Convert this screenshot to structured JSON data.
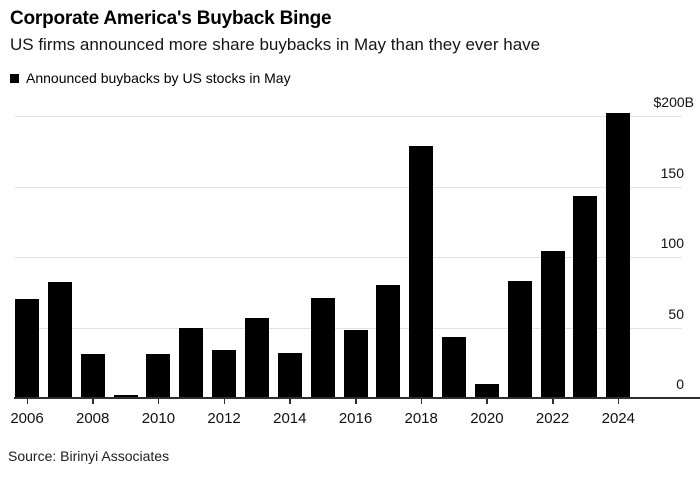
{
  "chart_data": {
    "type": "bar",
    "title": "Corporate America's Buyback Binge",
    "subtitle": "US firms announced more share buybacks in May than they ever have",
    "legend": "Announced buybacks by US stocks in May",
    "source": "Source: Birinyi Associates",
    "unit": "$B",
    "categories": [
      "2006",
      "2007",
      "2008",
      "2009",
      "2010",
      "2011",
      "2012",
      "2013",
      "2014",
      "2015",
      "2016",
      "2017",
      "2018",
      "2019",
      "2020",
      "2021",
      "2022",
      "2023",
      "2024"
    ],
    "values": [
      70,
      82,
      31,
      2,
      31,
      50,
      34,
      57,
      32,
      71,
      48,
      80,
      179,
      43,
      10,
      83,
      104,
      143,
      202
    ],
    "xticks": [
      "2006",
      "2008",
      "2010",
      "2012",
      "2014",
      "2016",
      "2018",
      "2020",
      "2022",
      "2024"
    ],
    "ytick_values": [
      0,
      50,
      100,
      150,
      200
    ],
    "ytick_labels": [
      "0",
      "50",
      "100",
      "150",
      "$200B"
    ],
    "ylim": [
      0,
      205
    ],
    "grid": "horizontal",
    "legend_position": "top-left",
    "axis_labels_side": "right",
    "bar_color": "#000000",
    "grid_color": "#e2e2e2",
    "axis_color": "#2e2e2e",
    "text_color": "#000000",
    "background_color": "#ffffff"
  }
}
